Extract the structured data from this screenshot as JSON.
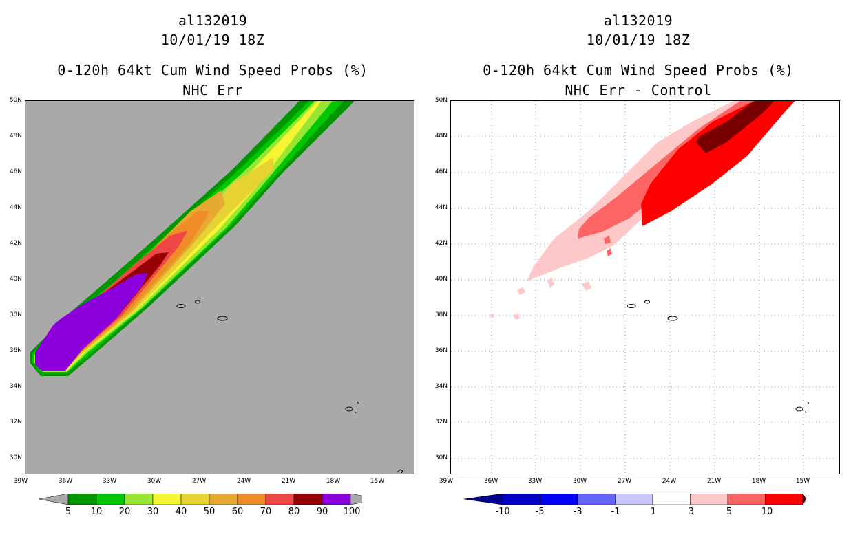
{
  "left_panel": {
    "title_line1": "al132019",
    "title_line2": "10/01/19 18Z",
    "title_line3": "0-120h 64kt Cum Wind Speed Probs (%)",
    "title_line4": "NHC Err",
    "colorbar": {
      "labels": [
        "5",
        "10",
        "20",
        "30",
        "40",
        "50",
        "60",
        "70",
        "80",
        "90",
        "100"
      ],
      "colors": [
        "#009600",
        "#00c800",
        "#96e632",
        "#f5f532",
        "#e6d232",
        "#e6aa32",
        "#f08c28",
        "#f04646",
        "#960000",
        "#8c00dc"
      ],
      "end_color": "#a9a9a9"
    },
    "background_color": "#a9a9a9"
  },
  "right_panel": {
    "title_line1": "al132019",
    "title_line2": "10/01/19 18Z",
    "title_line3": "0-120h 64kt Cum Wind Speed Probs (%)",
    "title_line4": "NHC Err - Control",
    "colorbar": {
      "labels": [
        "-10",
        "-5",
        "-3",
        "-1",
        "1",
        "3",
        "5",
        "10"
      ],
      "colors": [
        "#0000c8",
        "#0000ff",
        "#6464ff",
        "#c8c8ff",
        "#ffffff",
        "#ffc8c8",
        "#ff6464",
        "#ff0000"
      ],
      "end_color_low": "#00008c",
      "end_color_high": "#780000"
    },
    "background_color": "#ffffff"
  },
  "axes": {
    "lat_labels": [
      "50N",
      "48N",
      "46N",
      "44N",
      "42N",
      "40N",
      "38N",
      "36N",
      "34N",
      "32N",
      "30N"
    ],
    "lon_labels": [
      "39W",
      "36W",
      "33W",
      "30W",
      "27W",
      "24W",
      "21W",
      "18W",
      "15W"
    ]
  }
}
